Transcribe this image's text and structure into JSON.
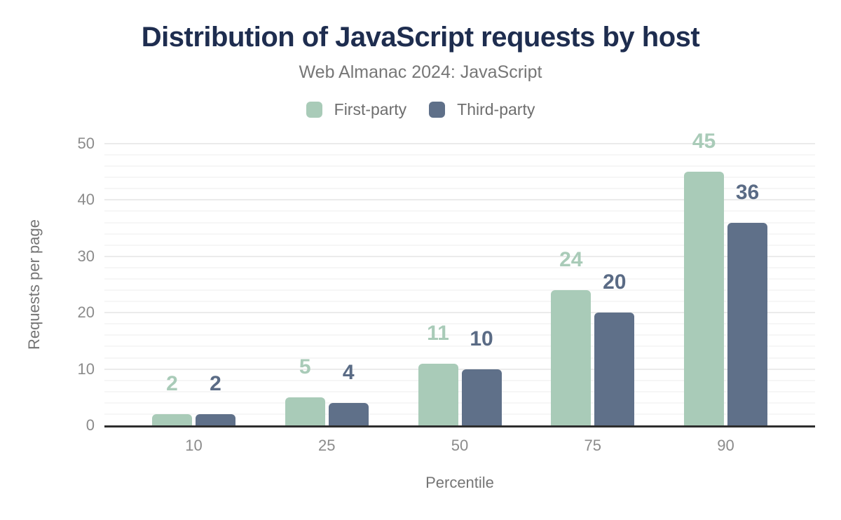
{
  "chart_data": {
    "type": "bar",
    "title": "Distribution of JavaScript requests by host",
    "subtitle": "Web Almanac 2024: JavaScript",
    "xlabel": "Percentile",
    "ylabel": "Requests per page",
    "categories": [
      "10",
      "25",
      "50",
      "75",
      "90"
    ],
    "series": [
      {
        "name": "First-party",
        "color": "#a9cbb8",
        "label_color": "#a9cbb8",
        "values": [
          2,
          5,
          11,
          24,
          45
        ]
      },
      {
        "name": "Third-party",
        "color": "#5f7089",
        "label_color": "#5a6b85",
        "values": [
          2,
          4,
          10,
          20,
          36
        ]
      }
    ],
    "ylim": [
      0,
      50
    ],
    "yticks": [
      0,
      10,
      20,
      30,
      40,
      50
    ],
    "grid": {
      "minor_step": 2,
      "major_step": 10,
      "on": true
    },
    "legend_position": "top"
  },
  "theme": {
    "title_color": "#1e2d4f",
    "subtitle_color": "#767676",
    "legend_text_color": "#6e6e6e",
    "tick_color": "#8b8b8b",
    "axis_title_color": "#757575",
    "axis_line_color": "#2e2e2e",
    "grid_minor_color": "#f6f6f6",
    "grid_major_color": "#ebebeb",
    "background": "#ffffff"
  }
}
